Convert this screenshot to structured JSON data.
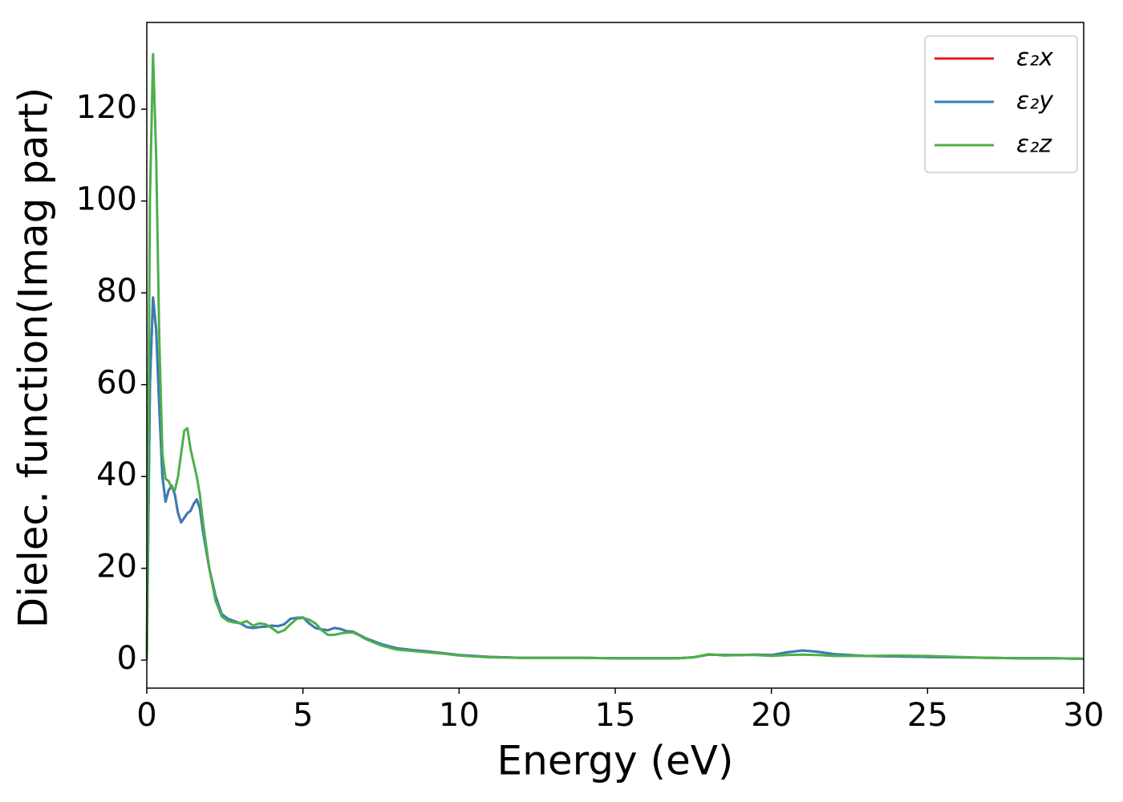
{
  "chart_data": {
    "type": "line",
    "xlabel": "Energy (eV)",
    "ylabel": "Dielec. function(Imag part)",
    "xlim": [
      0,
      30
    ],
    "ylim": [
      -6.1,
      138.9
    ],
    "xticks": [
      0,
      5,
      10,
      15,
      20,
      25,
      30
    ],
    "yticks": [
      0,
      20,
      40,
      60,
      80,
      100,
      120
    ],
    "legend": "upper right",
    "x": [
      0,
      0.1,
      0.2,
      0.3,
      0.4,
      0.5,
      0.6,
      0.7,
      0.8,
      0.9,
      1.0,
      1.1,
      1.2,
      1.3,
      1.4,
      1.5,
      1.6,
      1.7,
      1.8,
      2.0,
      2.2,
      2.4,
      2.6,
      2.8,
      3.0,
      3.2,
      3.4,
      3.6,
      3.8,
      4.0,
      4.2,
      4.4,
      4.6,
      4.8,
      5.0,
      5.2,
      5.4,
      5.6,
      5.8,
      6.0,
      6.2,
      6.4,
      6.6,
      6.8,
      7.0,
      7.5,
      8.0,
      8.5,
      9.0,
      9.5,
      10,
      11,
      12,
      13,
      14,
      15,
      16,
      17,
      17.5,
      18,
      18.5,
      19,
      19.5,
      20,
      20.5,
      21,
      21.5,
      22,
      22.5,
      23,
      24,
      25,
      26,
      27,
      28,
      29,
      30
    ],
    "series": [
      {
        "name": "ε₂x",
        "color": "#e41a1c",
        "values": [
          0,
          60,
          79,
          72,
          55,
          40,
          34.5,
          37,
          38,
          36,
          32,
          30,
          31,
          32,
          32.5,
          34,
          35,
          33,
          28,
          20,
          14,
          10,
          9,
          8.5,
          8,
          7.2,
          7,
          7.2,
          7.3,
          7.5,
          7.4,
          7.8,
          9,
          9.2,
          9.3,
          8,
          7,
          6.7,
          6.5,
          7,
          6.8,
          6.3,
          6.2,
          5.5,
          4.8,
          3.5,
          2.6,
          2.2,
          1.9,
          1.5,
          1.1,
          0.7,
          0.5,
          0.5,
          0.5,
          0.4,
          0.4,
          0.4,
          0.6,
          1.2,
          1.1,
          1.1,
          1.2,
          1.1,
          1.7,
          2.1,
          1.8,
          1.3,
          1.1,
          0.9,
          0.8,
          0.7,
          0.6,
          0.5,
          0.4,
          0.4,
          0.3
        ]
      },
      {
        "name": "ε₂y",
        "color": "#377eb8",
        "values": [
          0,
          60,
          79,
          72,
          55,
          40,
          34.5,
          37,
          38,
          36,
          32,
          30,
          31,
          32,
          32.5,
          34,
          35,
          33,
          28,
          20,
          14,
          10,
          9,
          8.5,
          8,
          7.2,
          7,
          7.2,
          7.3,
          7.5,
          7.4,
          7.8,
          9,
          9.2,
          9.3,
          8,
          7,
          6.7,
          6.5,
          7,
          6.8,
          6.3,
          6.2,
          5.5,
          4.8,
          3.5,
          2.6,
          2.2,
          1.9,
          1.5,
          1.1,
          0.7,
          0.5,
          0.5,
          0.5,
          0.4,
          0.4,
          0.4,
          0.6,
          1.2,
          1.1,
          1.1,
          1.2,
          1.1,
          1.7,
          2.1,
          1.8,
          1.3,
          1.1,
          0.9,
          0.8,
          0.7,
          0.6,
          0.5,
          0.4,
          0.4,
          0.3
        ]
      },
      {
        "name": "ε₂z",
        "color": "#4daf4a",
        "values": [
          0,
          100,
          132,
          110,
          70,
          45,
          39.5,
          39,
          37.5,
          37,
          40,
          45,
          50,
          50.5,
          46,
          43,
          40,
          36,
          30,
          20,
          13,
          9.5,
          8.5,
          8.2,
          8,
          8.5,
          7.5,
          8,
          7.8,
          7,
          6,
          6.5,
          7.8,
          9,
          9.2,
          8.8,
          8,
          6.5,
          5.5,
          5.5,
          5.8,
          6,
          6,
          5.4,
          4.6,
          3.2,
          2.3,
          2.0,
          1.7,
          1.4,
          1.0,
          0.6,
          0.5,
          0.5,
          0.5,
          0.4,
          0.4,
          0.4,
          0.6,
          1.3,
          1.0,
          1.1,
          1.1,
          0.9,
          1.1,
          1.2,
          1.1,
          0.9,
          0.9,
          0.9,
          1.0,
          0.9,
          0.7,
          0.5,
          0.4,
          0.4,
          0.3
        ]
      }
    ]
  }
}
